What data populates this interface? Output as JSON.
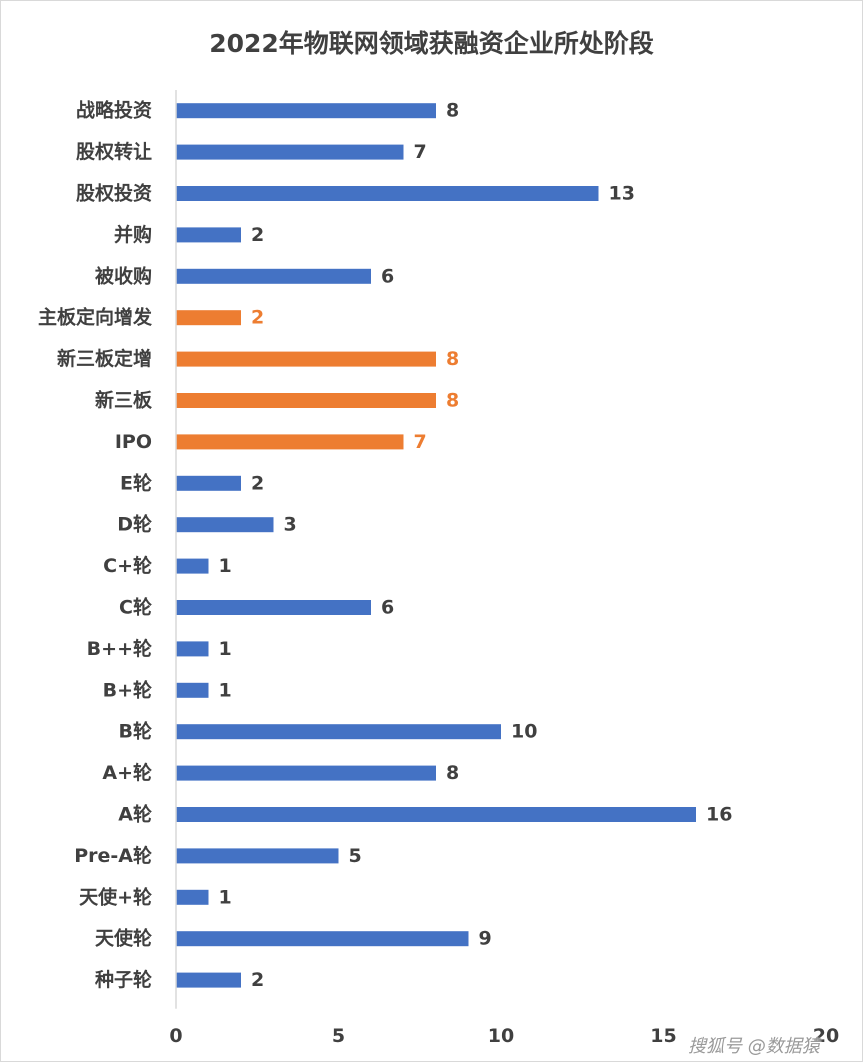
{
  "chart_data": {
    "type": "bar",
    "orientation": "horizontal",
    "title": "2022年物联网领域获融资企业所处阶段",
    "xlabel": "",
    "ylabel": "",
    "xlim": [
      0,
      20
    ],
    "x_ticks": [
      0,
      5,
      10,
      15,
      20
    ],
    "grid": false,
    "legend": "none",
    "categories": [
      "战略投资",
      "股权转让",
      "股权投资",
      "并购",
      "被收购",
      "主板定向增发",
      "新三板定增",
      "新三板",
      "IPO",
      "E轮",
      "D轮",
      "C+轮",
      "C轮",
      "B++轮",
      "B+轮",
      "B轮",
      "A+轮",
      "A轮",
      "Pre-A轮",
      "天使+轮",
      "天使轮",
      "种子轮"
    ],
    "values": [
      8,
      7,
      13,
      2,
      6,
      2,
      8,
      8,
      7,
      2,
      3,
      1,
      6,
      1,
      1,
      10,
      8,
      16,
      5,
      1,
      9,
      2
    ],
    "highlight": [
      "主板定向增发",
      "新三板定增",
      "新三板",
      "IPO"
    ],
    "colors": {
      "default_bar": "#4472c4",
      "highlight_bar": "#ed7d31",
      "default_label": "#404040",
      "highlight_label": "#ed7d31"
    }
  },
  "watermark": "搜狐号 @数据猿"
}
